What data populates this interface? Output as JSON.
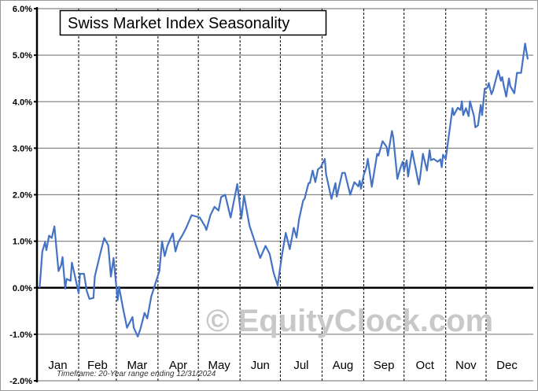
{
  "chart_data": {
    "type": "line",
    "title": "Swiss Market Index Seasonality",
    "xlabel": "",
    "ylabel": "",
    "ylim": [
      -2,
      6
    ],
    "xlim": [
      0,
      365
    ],
    "yticks": [
      6,
      5,
      4,
      3,
      2,
      1,
      0,
      -1,
      -2
    ],
    "ytick_labels": [
      "6.0%",
      "5.0%",
      "4.0%",
      "3.0%",
      "2.0%",
      "1.0%",
      "0.0%",
      "-1.0%",
      "-2.0%"
    ],
    "month_labels": [
      "Jan",
      "Feb",
      "Mar",
      "Apr",
      "May",
      "Jun",
      "Jul",
      "Aug",
      "Sep",
      "Oct",
      "Nov",
      "Dec"
    ],
    "month_starts": [
      0,
      31,
      59,
      90,
      120,
      151,
      181,
      212,
      243,
      273,
      304,
      334,
      365
    ],
    "grid": true,
    "legend": "none",
    "annotation": "Timeframe: 20-Year range ending 12/31/2024",
    "watermark": "© EquityClock.com",
    "line_color": "#4472c4",
    "series": [
      {
        "name": "Swiss Market Index",
        "points": [
          [
            2,
            0
          ],
          [
            4,
            0.78
          ],
          [
            6,
            0.98
          ],
          [
            7,
            0.81
          ],
          [
            9,
            1.12
          ],
          [
            11,
            1.07
          ],
          [
            13,
            1.32
          ],
          [
            16,
            0.36
          ],
          [
            18,
            0.49
          ],
          [
            19,
            0.66
          ],
          [
            21,
            -0.02
          ],
          [
            22,
            0.19
          ],
          [
            25,
            0.15
          ],
          [
            26,
            0.54
          ],
          [
            29,
            0.15
          ],
          [
            31,
            -0.12
          ],
          [
            32,
            0.3
          ],
          [
            35,
            0.3
          ],
          [
            37,
            -0.07
          ],
          [
            39,
            -0.24
          ],
          [
            42,
            -0.22
          ],
          [
            43,
            0.24
          ],
          [
            47,
            0.73
          ],
          [
            50,
            1.07
          ],
          [
            53,
            0.91
          ],
          [
            55,
            0.24
          ],
          [
            57,
            0.64
          ],
          [
            60,
            -0.27
          ],
          [
            61,
            0.02
          ],
          [
            64,
            -0.44
          ],
          [
            67,
            -0.86
          ],
          [
            71,
            -0.63
          ],
          [
            72,
            -0.86
          ],
          [
            75,
            -1.05
          ],
          [
            77,
            -0.88
          ],
          [
            80,
            -0.54
          ],
          [
            82,
            -0.66
          ],
          [
            85,
            -0.19
          ],
          [
            91,
            0.36
          ],
          [
            93,
            1.0
          ],
          [
            95,
            0.68
          ],
          [
            97,
            0.9
          ],
          [
            101,
            1.17
          ],
          [
            103,
            0.78
          ],
          [
            105,
            0.98
          ],
          [
            108,
            1.12
          ],
          [
            111,
            1.29
          ],
          [
            115,
            1.56
          ],
          [
            121,
            1.51
          ],
          [
            125,
            1.32
          ],
          [
            126,
            1.24
          ],
          [
            129,
            1.56
          ],
          [
            132,
            1.74
          ],
          [
            135,
            1.66
          ],
          [
            137,
            1.95
          ],
          [
            140,
            2.0
          ],
          [
            144,
            1.51
          ],
          [
            149,
            2.23
          ],
          [
            152,
            1.49
          ],
          [
            154,
            1.98
          ],
          [
            158,
            1.34
          ],
          [
            161,
            1.08
          ],
          [
            166,
            0.64
          ],
          [
            170,
            0.9
          ],
          [
            173,
            0.73
          ],
          [
            176,
            0.32
          ],
          [
            179,
            0.05
          ],
          [
            182,
            0.66
          ],
          [
            185,
            1.18
          ],
          [
            188,
            0.83
          ],
          [
            191,
            1.29
          ],
          [
            193,
            1.08
          ],
          [
            195,
            1.49
          ],
          [
            198,
            1.88
          ],
          [
            199,
            1.91
          ],
          [
            202,
            2.25
          ],
          [
            203,
            2.25
          ],
          [
            205,
            2.52
          ],
          [
            207,
            2.27
          ],
          [
            209,
            2.55
          ],
          [
            211,
            2.59
          ],
          [
            214,
            2.77
          ],
          [
            215,
            2.44
          ],
          [
            219,
            1.91
          ],
          [
            222,
            2.25
          ],
          [
            223,
            1.96
          ],
          [
            227,
            2.47
          ],
          [
            229,
            2.47
          ],
          [
            233,
            2.0
          ],
          [
            236,
            2.27
          ],
          [
            239,
            2.18
          ],
          [
            240,
            2.3
          ],
          [
            241,
            2.13
          ],
          [
            243,
            2.42
          ],
          [
            245,
            2.59
          ],
          [
            246,
            2.77
          ],
          [
            249,
            2.17
          ],
          [
            253,
            2.88
          ],
          [
            254,
            2.84
          ],
          [
            257,
            3.15
          ],
          [
            260,
            3.03
          ],
          [
            261,
            2.84
          ],
          [
            264,
            3.37
          ],
          [
            265,
            3.23
          ],
          [
            267,
            2.64
          ],
          [
            268,
            2.34
          ],
          [
            270,
            2.55
          ],
          [
            272,
            2.71
          ],
          [
            273,
            2.52
          ],
          [
            275,
            2.74
          ],
          [
            276,
            2.39
          ],
          [
            279,
            2.94
          ],
          [
            284,
            2.22
          ],
          [
            285,
            2.39
          ],
          [
            287,
            2.88
          ],
          [
            290,
            2.52
          ],
          [
            292,
            2.96
          ],
          [
            293,
            2.74
          ],
          [
            295,
            2.77
          ],
          [
            298,
            2.71
          ],
          [
            300,
            2.76
          ],
          [
            301,
            2.59
          ],
          [
            302,
            2.86
          ],
          [
            304,
            2.77
          ],
          [
            306,
            3.2
          ],
          [
            309,
            3.86
          ],
          [
            310,
            3.71
          ],
          [
            313,
            3.87
          ],
          [
            315,
            3.82
          ],
          [
            316,
            4.01
          ],
          [
            317,
            3.71
          ],
          [
            319,
            3.86
          ],
          [
            321,
            3.69
          ],
          [
            322,
            4.01
          ],
          [
            325,
            3.69
          ],
          [
            326,
            3.45
          ],
          [
            328,
            3.49
          ],
          [
            330,
            3.93
          ],
          [
            331,
            3.71
          ],
          [
            333,
            4.28
          ],
          [
            335,
            4.3
          ],
          [
            336,
            4.4
          ],
          [
            338,
            4.16
          ],
          [
            339,
            4.23
          ],
          [
            343,
            4.67
          ],
          [
            345,
            4.45
          ],
          [
            346,
            4.53
          ],
          [
            347,
            4.37
          ],
          [
            349,
            4.11
          ],
          [
            351,
            4.5
          ],
          [
            352,
            4.33
          ],
          [
            355,
            4.18
          ],
          [
            357,
            4.62
          ],
          [
            360,
            4.62
          ],
          [
            363,
            5.25
          ],
          [
            365,
            4.91
          ]
        ]
      }
    ]
  }
}
